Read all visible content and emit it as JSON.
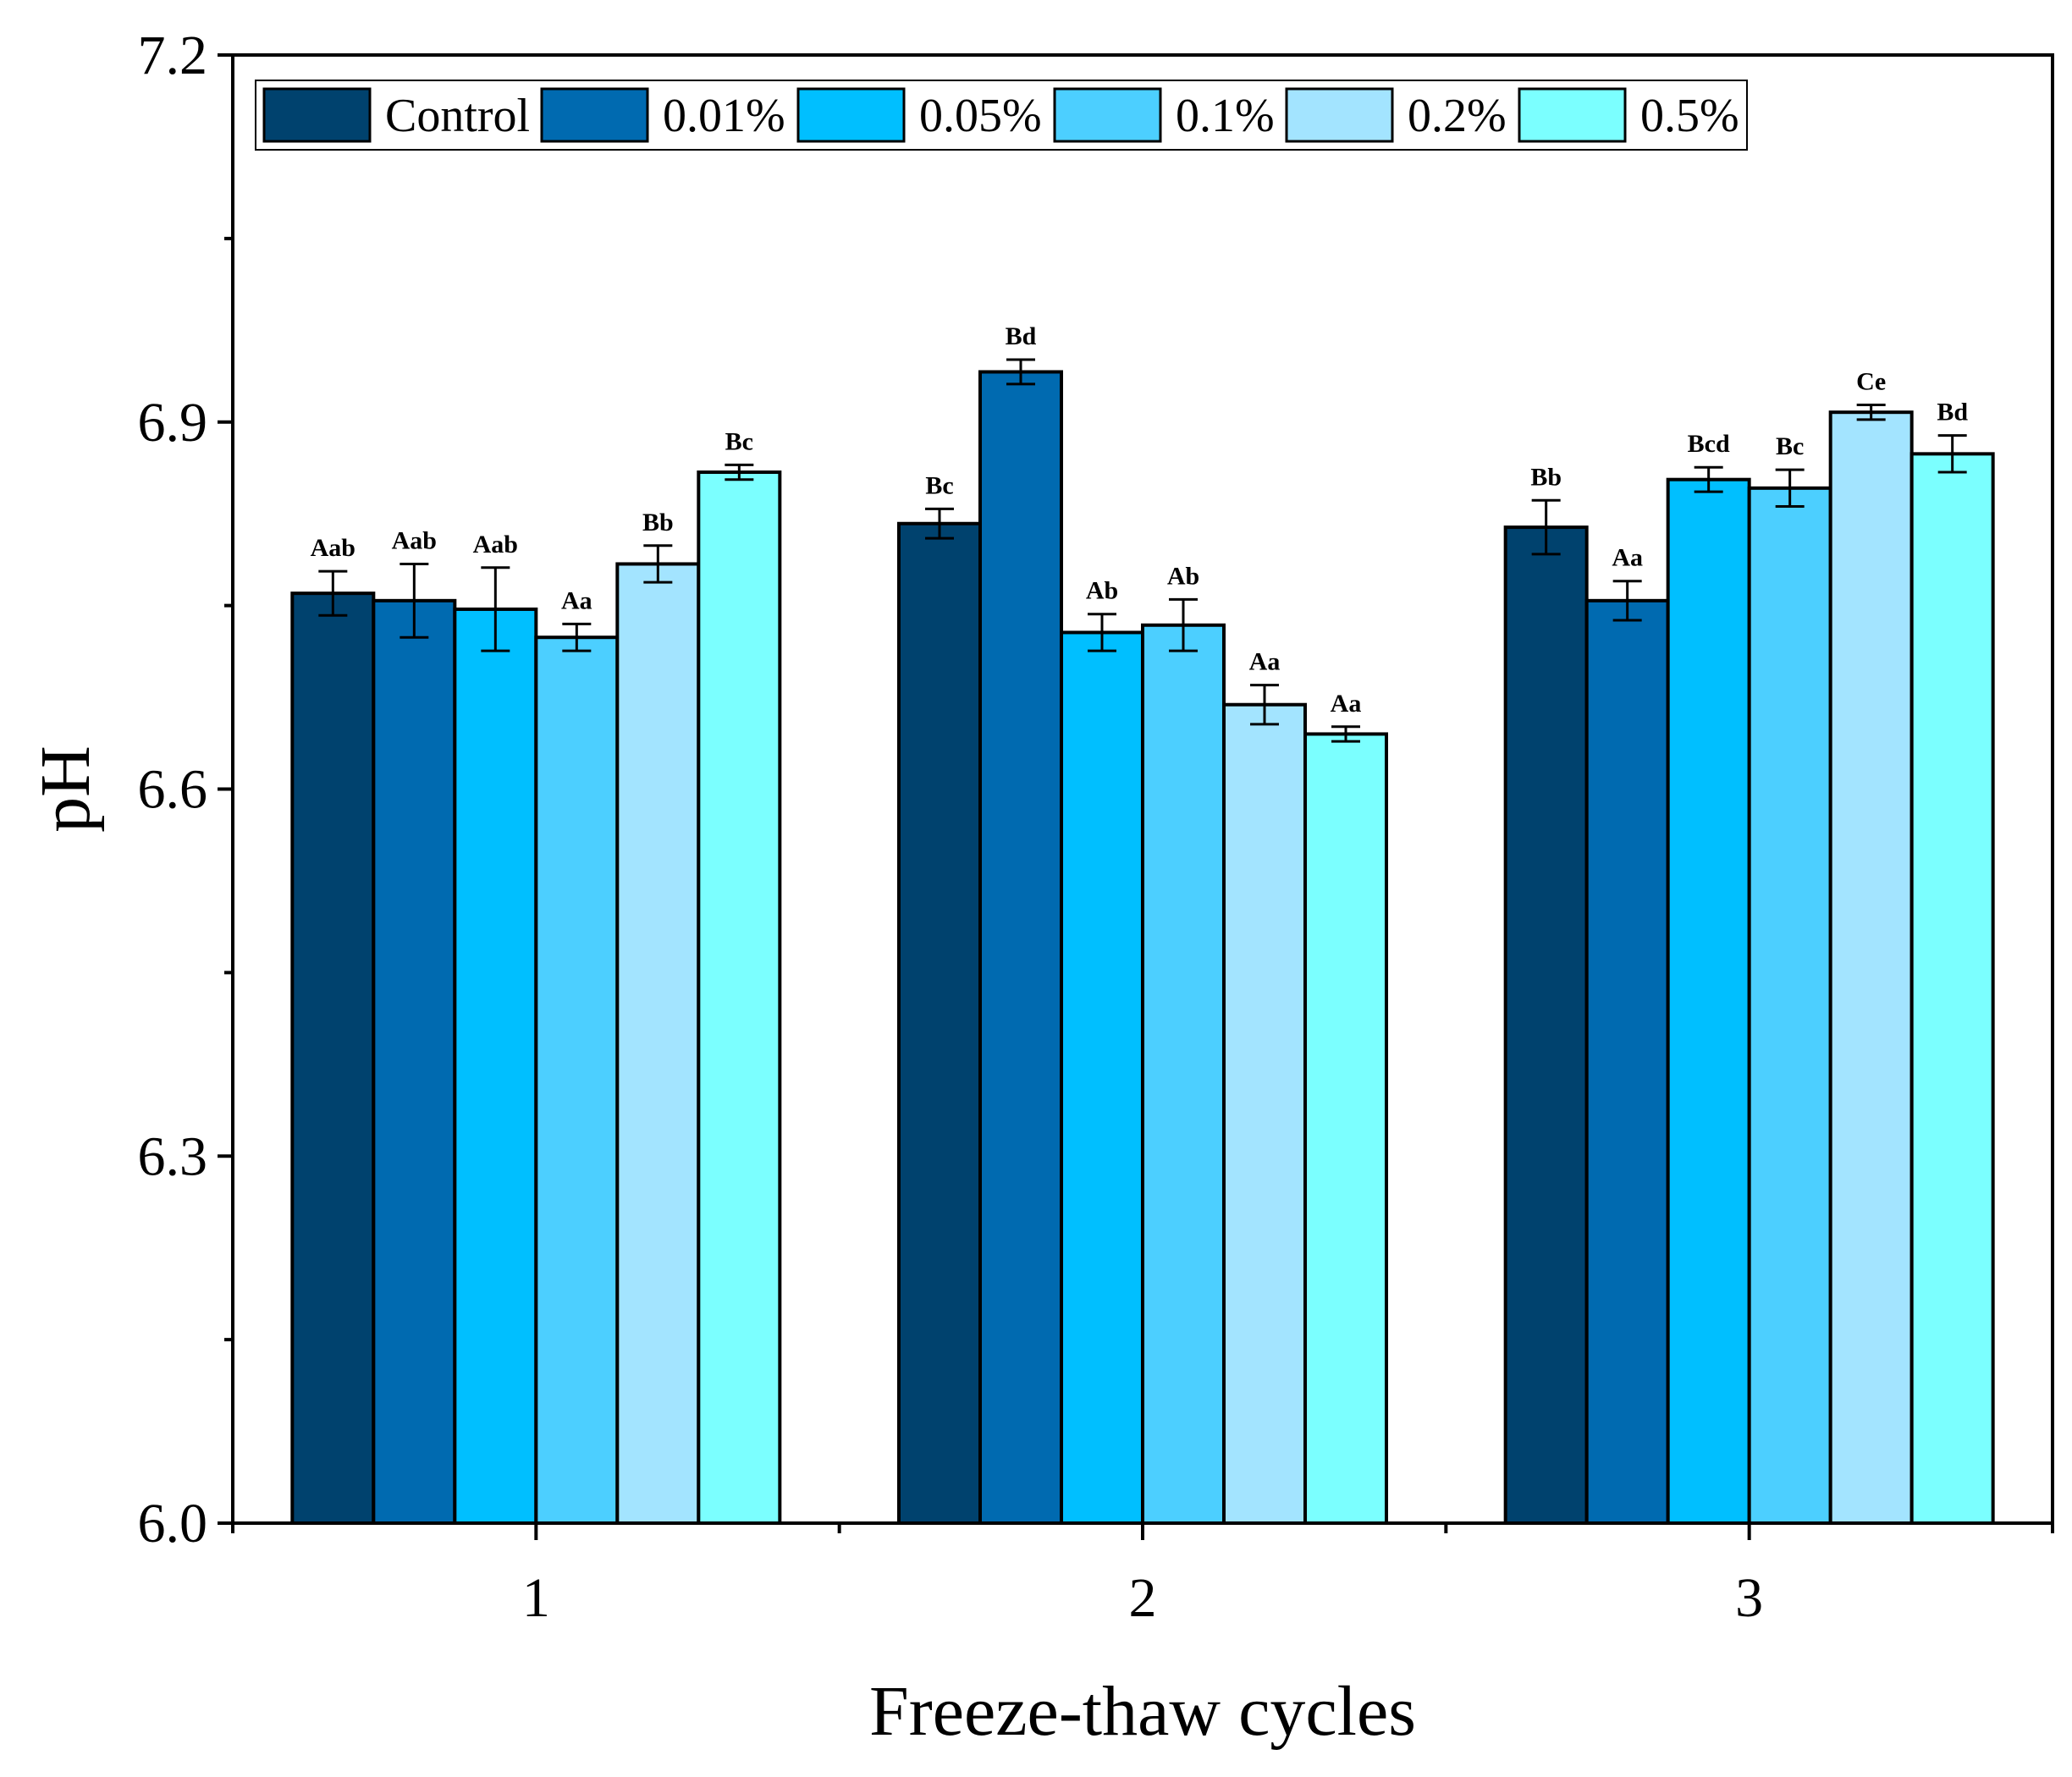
{
  "chart_data": {
    "type": "bar",
    "title": "",
    "xlabel": "Freeze-thaw cycles",
    "ylabel": "pH",
    "ylim": [
      6.0,
      7.2
    ],
    "yticks": [
      "6.0",
      "6.3",
      "6.6",
      "6.9",
      "7.2"
    ],
    "minor_ytick_step": 0.15,
    "categories": [
      "1",
      "2",
      "3"
    ],
    "grid": false,
    "legend_position": "top",
    "series": [
      {
        "name": "Control",
        "color": "#00426e",
        "values": [
          6.76,
          6.817,
          6.814
        ],
        "errors": [
          0.018,
          0.012,
          0.022
        ],
        "labels": [
          "Aab",
          "Bc",
          "Bb"
        ]
      },
      {
        "name": "0.01%",
        "color": "#006ab0",
        "values": [
          6.754,
          6.941,
          6.754
        ],
        "errors": [
          0.03,
          0.01,
          0.016
        ],
        "labels": [
          "Aab",
          "Bd",
          "Aa"
        ]
      },
      {
        "name": "0.05%",
        "color": "#00bfff",
        "values": [
          6.747,
          6.728,
          6.853
        ],
        "errors": [
          0.034,
          0.015,
          0.01
        ],
        "labels": [
          "Aab",
          "Ab",
          "Bcd"
        ]
      },
      {
        "name": "0.1%",
        "color": "#4ccfff",
        "values": [
          6.724,
          6.734,
          6.846
        ],
        "errors": [
          0.011,
          0.021,
          0.015
        ],
        "labels": [
          "Aa",
          "Ab",
          "Bc"
        ]
      },
      {
        "name": "0.2%",
        "color": "#a3e4ff",
        "values": [
          6.784,
          6.669,
          6.908
        ],
        "errors": [
          0.015,
          0.016,
          0.006
        ],
        "labels": [
          "Bb",
          "Aa",
          "Ce"
        ]
      },
      {
        "name": "0.5%",
        "color": "#7bffff",
        "values": [
          6.859,
          6.645,
          6.874
        ],
        "errors": [
          0.006,
          0.006,
          0.015
        ],
        "labels": [
          "Bc",
          "Aa",
          "Bd"
        ]
      }
    ]
  }
}
